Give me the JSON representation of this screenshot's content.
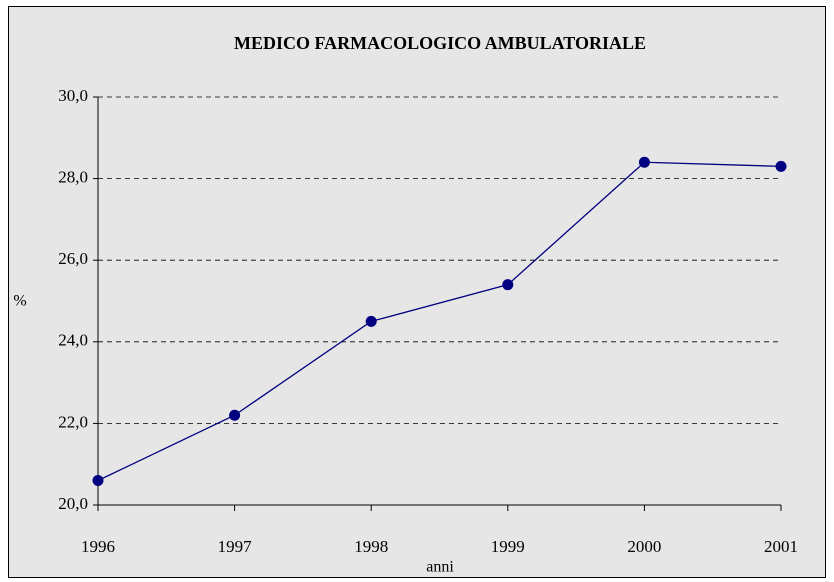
{
  "chart_data": {
    "type": "line",
    "title": "MEDICO FARMACOLOGICO AMBULATORIALE",
    "x_label": "anni",
    "y_label": "%",
    "categories": [
      "1996",
      "1997",
      "1998",
      "1999",
      "2000",
      "2001"
    ],
    "series": [
      {
        "name": "MEDICO FARMACOLOGICO AMBULATORIALE",
        "color": "#000080",
        "values": [
          20.6,
          22.2,
          24.5,
          25.4,
          28.4,
          28.3
        ]
      }
    ],
    "ylim": [
      20,
      30
    ],
    "yticks": [
      {
        "value": 20,
        "label": "20,0"
      },
      {
        "value": 22,
        "label": "22,0"
      },
      {
        "value": 24,
        "label": "24,0"
      },
      {
        "value": 26,
        "label": "26,0"
      },
      {
        "value": 28,
        "label": "28,0"
      },
      {
        "value": 30,
        "label": "30,0"
      }
    ],
    "grid": true
  }
}
